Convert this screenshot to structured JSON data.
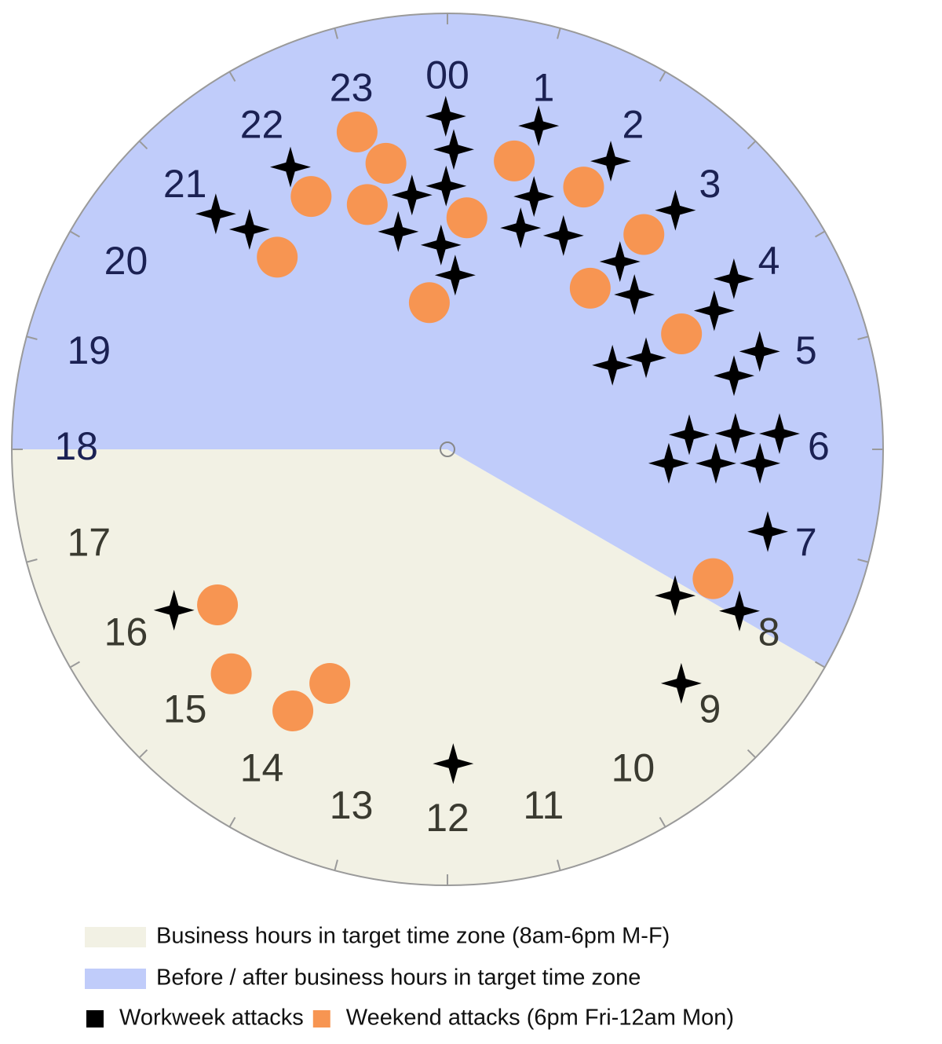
{
  "chart_data": {
    "type": "polar-scatter",
    "thetalim": [
      0,
      24
    ],
    "thetaticks": [
      {
        "value": 0,
        "label": "00"
      },
      1,
      2,
      3,
      4,
      5,
      6,
      7,
      8,
      9,
      10,
      11,
      12,
      13,
      14,
      15,
      16,
      17,
      18,
      19,
      20,
      21,
      22,
      23
    ],
    "regions": [
      {
        "name": "Business hours in target time zone (8am-6pm M-F)",
        "color": "#f2f1e4",
        "start": 8,
        "end": 18
      },
      {
        "name": "Before / after business hours in target time zone",
        "color": "#c0ccfa",
        "start": 18,
        "end": 8
      }
    ],
    "series": [
      {
        "name": "Workweek attacks",
        "color": "#000000",
        "marker": "star",
        "theta": [
          23.98,
          0.08,
          1.05,
          1.97,
          23.98,
          23.47,
          1.26,
          1.22,
          1.9,
          23.15,
          23.88,
          0.17,
          22.06,
          21.03,
          21.2,
          2.91,
          2.84,
          3.36,
          3.95,
          4.17,
          4.84,
          5.04,
          4.2,
          4.35,
          5.77,
          5.79,
          5.82,
          6.24,
          6.2,
          6.17,
          6.96,
          8.18,
          7.93,
          9.0,
          11.93,
          15.97
        ],
        "r": [
          0.764,
          0.688,
          0.771,
          0.76,
          0.604,
          0.589,
          0.613,
          0.535,
          0.558,
          0.512,
          0.469,
          0.4,
          0.741,
          0.758,
          0.679,
          0.758,
          0.585,
          0.557,
          0.765,
          0.69,
          0.751,
          0.679,
          0.425,
          0.502,
          0.556,
          0.662,
          0.763,
          0.509,
          0.617,
          0.718,
          0.759,
          0.621,
          0.766,
          0.759,
          0.721,
          0.728
        ]
      },
      {
        "name": "Weekend attacks (6pm Fri-12am Mon)",
        "color": "#f79552",
        "marker": "circle",
        "theta": [
          22.94,
          23.19,
          22.79,
          22.11,
          21.23,
          0.87,
          0.32,
          23.53,
          1.83,
          2.83,
          2.77,
          4.25,
          7.73,
          15.73,
          14.93,
          13.78,
          14.04
        ],
        "r": [
          0.757,
          0.671,
          0.591,
          0.659,
          0.589,
          0.679,
          0.533,
          0.339,
          0.678,
          0.668,
          0.494,
          0.599,
          0.678,
          0.637,
          0.715,
          0.601,
          0.697
        ]
      }
    ]
  }
}
